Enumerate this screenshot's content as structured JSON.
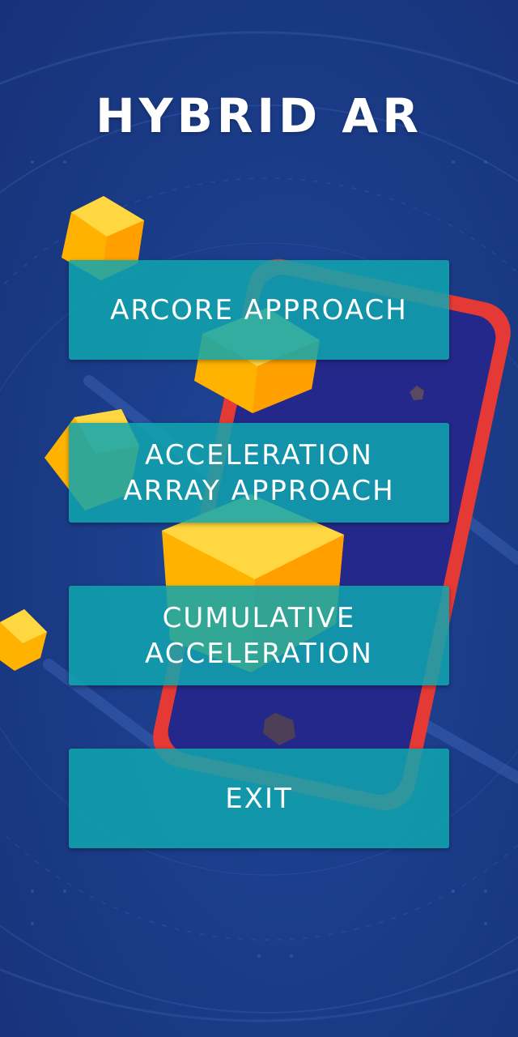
{
  "app": {
    "title": "HYBRID AR"
  },
  "menu": {
    "arcore_label": "ARCORE APPROACH",
    "acceleration_array_label": "ACCELERATION\nARRAY APPROACH",
    "cumulative_label": "CUMULATIVE\nACCELERATION",
    "exit_label": "EXIT"
  },
  "colors": {
    "background": "#1b3d8a",
    "button": "#10a5af",
    "phone_frame": "#e53935",
    "cube_yellow": "#ffc107"
  }
}
